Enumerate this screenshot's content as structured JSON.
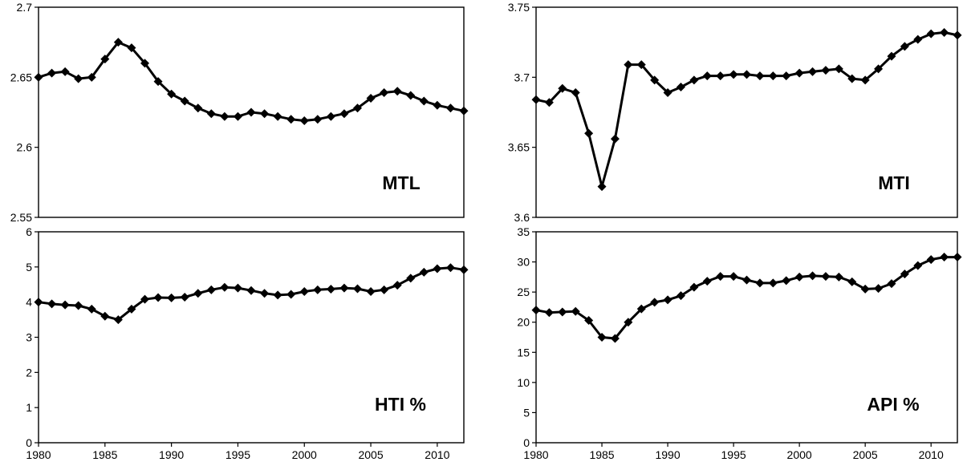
{
  "colors": {
    "line": "#000000",
    "marker": "#000000",
    "frame": "#000000",
    "background": "#ffffff"
  },
  "chart_data": [
    {
      "type": "line",
      "label": "MTL",
      "x": [
        1980,
        1981,
        1982,
        1983,
        1984,
        1985,
        1986,
        1987,
        1988,
        1989,
        1990,
        1991,
        1992,
        1993,
        1994,
        1995,
        1996,
        1997,
        1998,
        1999,
        2000,
        2001,
        2002,
        2003,
        2004,
        2005,
        2006,
        2007,
        2008,
        2009,
        2010,
        2011,
        2012
      ],
      "values": [
        2.65,
        2.653,
        2.654,
        2.649,
        2.65,
        2.663,
        2.675,
        2.671,
        2.66,
        2.647,
        2.638,
        2.633,
        2.628,
        2.624,
        2.622,
        2.622,
        2.625,
        2.624,
        2.622,
        2.62,
        2.619,
        2.62,
        2.622,
        2.624,
        2.628,
        2.635,
        2.639,
        2.64,
        2.637,
        2.633,
        2.63,
        2.628,
        2.626
      ],
      "ylim": [
        2.55,
        2.7
      ],
      "yticks": [
        2.55,
        2.6,
        2.65,
        2.7
      ],
      "ytick_labels": [
        "2.55",
        "2.6",
        "2.65",
        "2.7"
      ],
      "xlim": [
        1980,
        2012
      ],
      "xticks": [],
      "xtick_labels": [],
      "marker": "diamond"
    },
    {
      "type": "line",
      "label": "MTI",
      "x": [
        1980,
        1981,
        1982,
        1983,
        1984,
        1985,
        1986,
        1987,
        1988,
        1989,
        1990,
        1991,
        1992,
        1993,
        1994,
        1995,
        1996,
        1997,
        1998,
        1999,
        2000,
        2001,
        2002,
        2003,
        2004,
        2005,
        2006,
        2007,
        2008,
        2009,
        2010,
        2011,
        2012
      ],
      "values": [
        3.684,
        3.682,
        3.692,
        3.689,
        3.66,
        3.622,
        3.656,
        3.709,
        3.709,
        3.698,
        3.689,
        3.693,
        3.698,
        3.701,
        3.701,
        3.702,
        3.702,
        3.701,
        3.701,
        3.701,
        3.703,
        3.704,
        3.705,
        3.706,
        3.699,
        3.698,
        3.706,
        3.715,
        3.722,
        3.727,
        3.731,
        3.732,
        3.73
      ],
      "ylim": [
        3.6,
        3.75
      ],
      "yticks": [
        3.6,
        3.65,
        3.7,
        3.75
      ],
      "ytick_labels": [
        "3.6",
        "3.65",
        "3.7",
        "3.75"
      ],
      "xlim": [
        1980,
        2012
      ],
      "xticks": [],
      "xtick_labels": [],
      "marker": "diamond"
    },
    {
      "type": "line",
      "label": "HTI %",
      "x": [
        1980,
        1981,
        1982,
        1983,
        1984,
        1985,
        1986,
        1987,
        1988,
        1989,
        1990,
        1991,
        1992,
        1993,
        1994,
        1995,
        1996,
        1997,
        1998,
        1999,
        2000,
        2001,
        2002,
        2003,
        2004,
        2005,
        2006,
        2007,
        2008,
        2009,
        2010,
        2011,
        2012
      ],
      "values": [
        4.0,
        3.95,
        3.92,
        3.9,
        3.8,
        3.6,
        3.5,
        3.8,
        4.08,
        4.13,
        4.12,
        4.14,
        4.25,
        4.35,
        4.42,
        4.4,
        4.33,
        4.25,
        4.2,
        4.22,
        4.3,
        4.35,
        4.37,
        4.4,
        4.38,
        4.3,
        4.35,
        4.48,
        4.68,
        4.85,
        4.95,
        4.98,
        4.92
      ],
      "ylim": [
        0,
        6
      ],
      "yticks": [
        0,
        1,
        2,
        3,
        4,
        5,
        6
      ],
      "ytick_labels": [
        "0",
        "1",
        "2",
        "3",
        "4",
        "5",
        "6"
      ],
      "xlim": [
        1980,
        2012
      ],
      "xticks": [
        1980,
        1985,
        1990,
        1995,
        2000,
        2005,
        2010
      ],
      "xtick_labels": [
        "1980",
        "1985",
        "1990",
        "1995",
        "2000",
        "2005",
        "2010"
      ],
      "marker": "diamond"
    },
    {
      "type": "line",
      "label": "API %",
      "x": [
        1980,
        1981,
        1982,
        1983,
        1984,
        1985,
        1986,
        1987,
        1988,
        1989,
        1990,
        1991,
        1992,
        1993,
        1994,
        1995,
        1996,
        1997,
        1998,
        1999,
        2000,
        2001,
        2002,
        2003,
        2004,
        2005,
        2006,
        2007,
        2008,
        2009,
        2010,
        2011,
        2012
      ],
      "values": [
        22.0,
        21.6,
        21.7,
        21.8,
        20.3,
        17.5,
        17.3,
        20.0,
        22.2,
        23.3,
        23.7,
        24.4,
        25.8,
        26.8,
        27.6,
        27.6,
        27.0,
        26.5,
        26.5,
        26.9,
        27.5,
        27.7,
        27.6,
        27.5,
        26.7,
        25.5,
        25.6,
        26.4,
        28.0,
        29.4,
        30.4,
        30.8,
        30.8
      ],
      "ylim": [
        0,
        35
      ],
      "yticks": [
        0,
        5,
        10,
        15,
        20,
        25,
        30,
        35
      ],
      "ytick_labels": [
        "0",
        "5",
        "10",
        "15",
        "20",
        "25",
        "30",
        "35"
      ],
      "xlim": [
        1980,
        2012
      ],
      "xticks": [
        1980,
        1985,
        1990,
        1995,
        2000,
        2005,
        2010
      ],
      "xtick_labels": [
        "1980",
        "1985",
        "1990",
        "1995",
        "2000",
        "2005",
        "2010"
      ],
      "marker": "diamond"
    }
  ]
}
